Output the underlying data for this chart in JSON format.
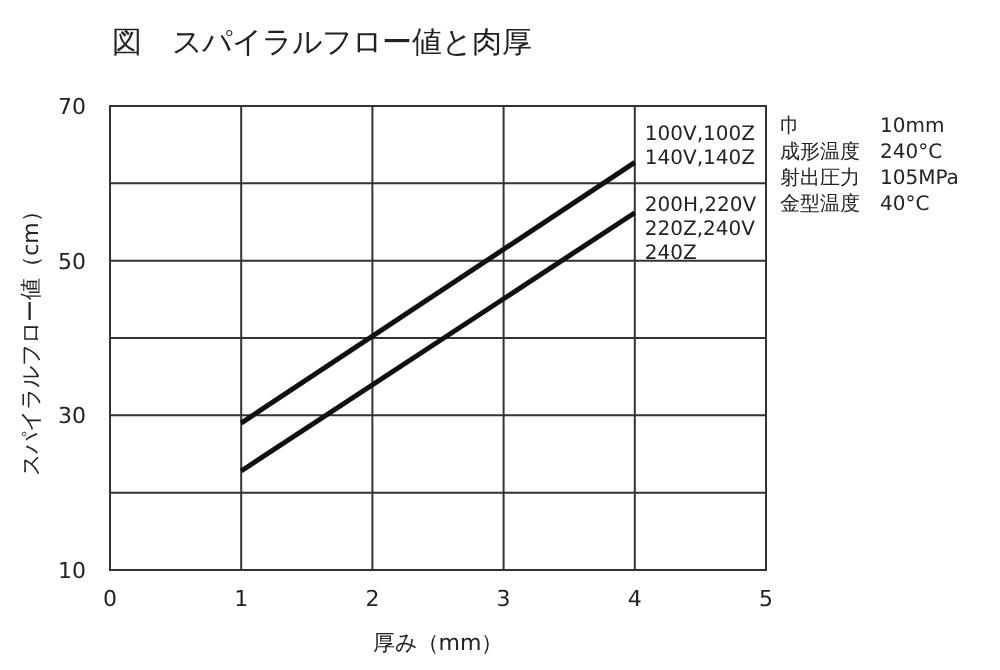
{
  "chart_data": {
    "type": "line",
    "title": "図　スパイラルフロー値と肉厚",
    "xlabel": "厚み（mm）",
    "ylabel": "スパイラルフロー値（cm）",
    "xlim": [
      0,
      5
    ],
    "xticks": [
      0,
      1,
      2,
      3,
      4,
      5
    ],
    "ylim": [
      10,
      70
    ],
    "yticks": [
      10,
      {
        "value": 20,
        "label": null
      },
      30,
      {
        "value": 40,
        "label": null
      },
      50,
      {
        "value": 60,
        "label": null
      },
      70
    ],
    "grid": true,
    "x": [
      1,
      4
    ],
    "series": [
      {
        "name": "100V,100Z\n140V,140Z",
        "color": "#111111",
        "values": [
          29,
          62.7
        ]
      },
      {
        "name": "200H,220V\n220Z,240V\n240Z",
        "color": "#111111",
        "values": [
          22.8,
          56.2
        ]
      }
    ],
    "annotations": [
      "巾 10mm",
      "成形温度 240°C",
      "射出圧力 105MPa",
      "金型温度 40°C"
    ]
  }
}
